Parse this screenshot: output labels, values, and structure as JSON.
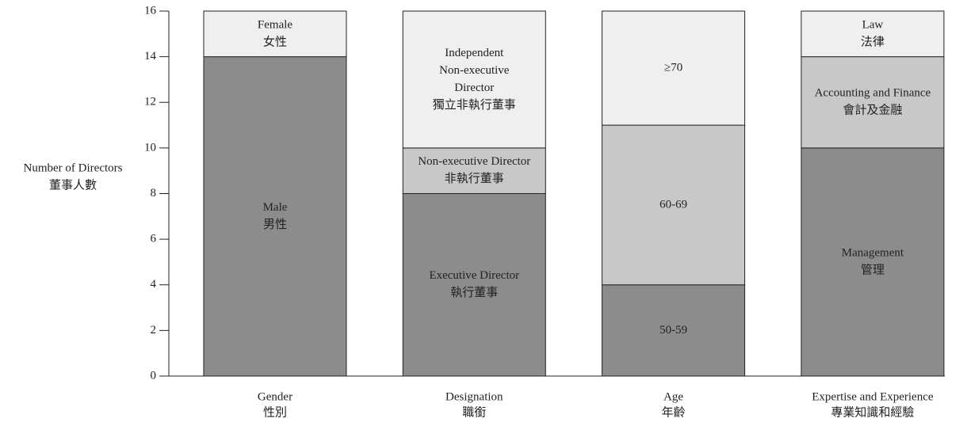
{
  "chart_data": {
    "type": "stacked_bar",
    "y_label": [
      "Number of Directors",
      "董事人數"
    ],
    "ylim": [
      0,
      16
    ],
    "yticks": [
      0,
      2,
      4,
      6,
      8,
      10,
      12,
      14,
      16
    ],
    "categories": [
      {
        "label": [
          "Gender",
          "性別"
        ],
        "segments": [
          {
            "label": [
              "Male",
              "男性"
            ],
            "value": 14,
            "color": "#8c8c8c"
          },
          {
            "label": [
              "Female",
              "女性"
            ],
            "value": 2,
            "color": "#efefef"
          }
        ]
      },
      {
        "label": [
          "Designation",
          "職銜"
        ],
        "segments": [
          {
            "label": [
              "Executive Director",
              "執行董事"
            ],
            "value": 8,
            "color": "#8c8c8c"
          },
          {
            "label": [
              "Non-executive Director",
              "非執行董事"
            ],
            "value": 2,
            "color": "#c8c8c8"
          },
          {
            "label": [
              "Independent",
              "Non-executive",
              "Director",
              "獨立非執行董事"
            ],
            "value": 6,
            "color": "#efefef"
          }
        ]
      },
      {
        "label": [
          "Age",
          "年齡"
        ],
        "segments": [
          {
            "label": [
              "50-59"
            ],
            "value": 4,
            "color": "#8c8c8c"
          },
          {
            "label": [
              "60-69"
            ],
            "value": 7,
            "color": "#c8c8c8"
          },
          {
            "label": [
              "≥70"
            ],
            "value": 5,
            "color": "#efefef"
          }
        ]
      },
      {
        "label": [
          "Expertise and Experience",
          "專業知識和經驗"
        ],
        "segments": [
          {
            "label": [
              "Management",
              "管理"
            ],
            "value": 10,
            "color": "#8c8c8c"
          },
          {
            "label": [
              "Accounting and Finance",
              "會計及金融"
            ],
            "value": 4,
            "color": "#c8c8c8"
          },
          {
            "label": [
              "Law",
              "法律"
            ],
            "value": 2,
            "color": "#efefef"
          }
        ]
      }
    ]
  }
}
